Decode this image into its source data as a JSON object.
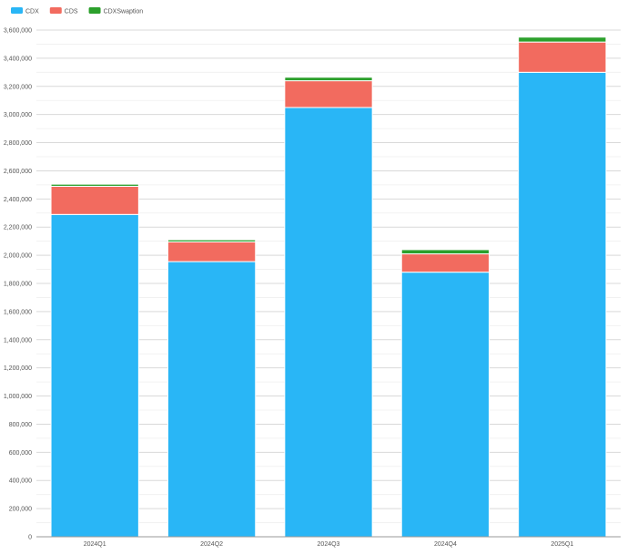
{
  "chart_data": {
    "type": "bar",
    "stacked": true,
    "title": "",
    "xlabel": "",
    "ylabel": "",
    "categories": [
      "2024Q1",
      "2024Q2",
      "2024Q3",
      "2024Q4",
      "2025Q1"
    ],
    "series": [
      {
        "name": "CDX",
        "color": "#29b6f6",
        "values": [
          2290000,
          1955000,
          3050000,
          1880000,
          3300000
        ]
      },
      {
        "name": "CDS",
        "color": "#f26b5f",
        "values": [
          200000,
          140000,
          190000,
          130000,
          215000
        ]
      },
      {
        "name": "CDXSwaption",
        "color": "#2ca02c",
        "values": [
          15000,
          15000,
          25000,
          30000,
          35000
        ]
      }
    ],
    "ylim": [
      0,
      3600000
    ],
    "ytick_step": 200000,
    "yticks": [
      "0",
      "200,000",
      "400,000",
      "600,000",
      "800,000",
      "1,000,000",
      "1,200,000",
      "1,400,000",
      "1,600,000",
      "1,800,000",
      "2,000,000",
      "2,200,000",
      "2,400,000",
      "2,600,000",
      "2,800,000",
      "3,000,000",
      "3,200,000",
      "3,400,000",
      "3,600,000"
    ],
    "grid": true,
    "minor_grid": true,
    "legend_position": "top-left"
  }
}
